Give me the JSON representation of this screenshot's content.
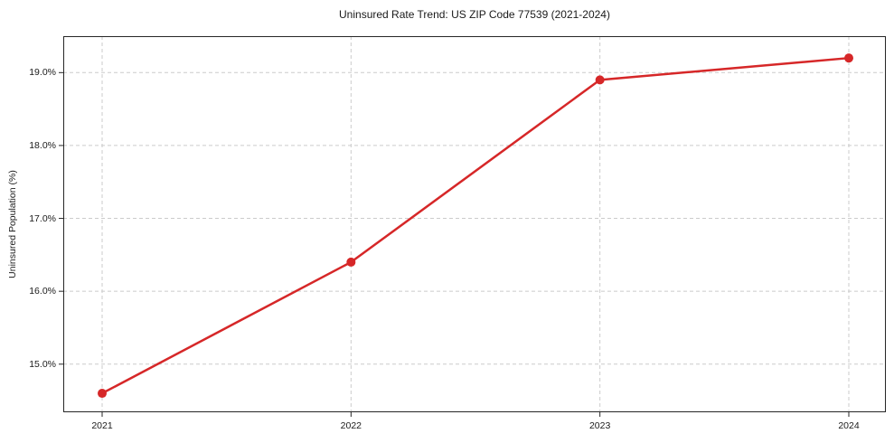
{
  "chart_data": {
    "type": "line",
    "title": "Uninsured Rate Trend: US ZIP Code 77539 (2021-2024)",
    "xlabel": "",
    "ylabel": "Uninsured Population (%)",
    "x": [
      "2021",
      "2022",
      "2023",
      "2024"
    ],
    "values": [
      14.6,
      16.4,
      18.9,
      19.2
    ],
    "y_tick_values": [
      15.0,
      16.0,
      17.0,
      18.0,
      19.0
    ],
    "y_tick_labels": [
      "15.0%",
      "16.0%",
      "17.0%",
      "18.0%",
      "19.0%"
    ],
    "x_tick_labels": [
      "2021",
      "2022",
      "2023",
      "2024"
    ],
    "ylim": [
      14.34,
      19.5
    ],
    "grid": true,
    "grid_style": "dashed",
    "legend": false,
    "line_color": "#d62728",
    "marker_color": "#d62728",
    "grid_color": "#cbcbcb",
    "axis_color": "#262626",
    "text_color": "#1a1a1a"
  }
}
